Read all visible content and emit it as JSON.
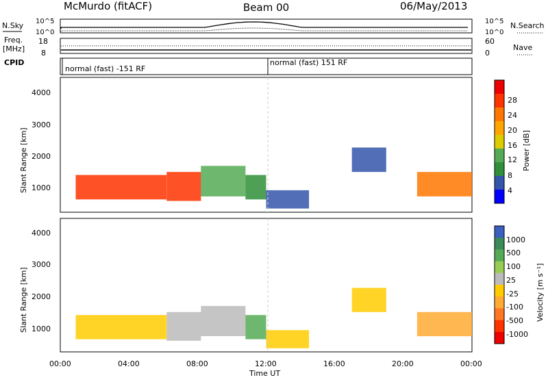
{
  "header": {
    "station": "McMurdo (fitACF)",
    "beam": "Beam 00",
    "date": "06/May/2013"
  },
  "noise_panel": {
    "left_label": "N.Sky",
    "right_label": "N.Search",
    "left_ticks": [
      "10^5",
      "10^0"
    ],
    "right_ticks": [
      "10^5",
      "10^0"
    ]
  },
  "freq_panel": {
    "left_label_1": "Freq.",
    "left_label_2": "[MHz]",
    "right_label": "Nave",
    "left_ticks": [
      "18",
      "8"
    ],
    "right_ticks": [
      "60",
      "0"
    ]
  },
  "cpid_panel": {
    "label": "CPID",
    "mode_1": "normal (fast) -151 RF",
    "mode_2": "normal (fast) 151 RF"
  },
  "power_panel": {
    "ylabel": "Slant Range [km]",
    "yticks": [
      "4000",
      "3000",
      "2000",
      "1000"
    ],
    "colorbar_label": "Power [dB]",
    "colorbar_ticks": [
      "28",
      "24",
      "20",
      "16",
      "12",
      "8",
      "4"
    ]
  },
  "velocity_panel": {
    "ylabel": "Slant Range [km]",
    "yticks": [
      "4000",
      "3000",
      "2000",
      "1000"
    ],
    "colorbar_label": "Velocity [m s⁻¹]",
    "colorbar_ticks": [
      "1000",
      "500",
      "100",
      "25",
      "-25",
      "-100",
      "-500",
      "-1000"
    ]
  },
  "xaxis": {
    "label": "Time UT",
    "ticks": [
      "00:00",
      "04:00",
      "08:00",
      "12:00",
      "16:00",
      "20:00",
      "00:00"
    ]
  },
  "colors": {
    "power": [
      "#0000ff",
      "#3355aa",
      "#2f8f3a",
      "#55aa55",
      "#ddcc00",
      "#ffa500",
      "#ff7700",
      "#ff3300",
      "#ee0000"
    ],
    "velocity": [
      "#3b5fbf",
      "#3a8a5a",
      "#55aa55",
      "#99cc55",
      "#bbbbbb",
      "#ffcc00",
      "#ffaa33",
      "#ff7722",
      "#ff3300",
      "#ee0000"
    ]
  },
  "chart_data": [
    {
      "type": "heatmap",
      "title": "Power [dB]",
      "xlabel": "Time UT",
      "ylabel": "Slant Range [km]",
      "xlim": [
        0,
        24
      ],
      "ylim": [
        180,
        4600
      ],
      "colorbar_range": [
        0,
        32
      ],
      "regions": [
        {
          "t": [
            0.9,
            6.2
          ],
          "r": [
            600,
            1400
          ],
          "value": 28
        },
        {
          "t": [
            6.2,
            8.2
          ],
          "r": [
            550,
            1500
          ],
          "value": 27
        },
        {
          "t": [
            8.2,
            10.8
          ],
          "r": [
            700,
            1700
          ],
          "value": 12
        },
        {
          "t": [
            10.8,
            12.0
          ],
          "r": [
            600,
            1400
          ],
          "value": 8
        },
        {
          "t": [
            12.0,
            14.5
          ],
          "r": [
            300,
            900
          ],
          "value": 6
        },
        {
          "t": [
            17.0,
            19.0
          ],
          "r": [
            1500,
            2300
          ],
          "value": 6
        },
        {
          "t": [
            20.8,
            24.0
          ],
          "r": [
            700,
            1500
          ],
          "value": 24
        }
      ]
    },
    {
      "type": "heatmap",
      "title": "Velocity [m s⁻¹]",
      "xlabel": "Time UT",
      "ylabel": "Slant Range [km]",
      "xlim": [
        0,
        24
      ],
      "ylim": [
        180,
        4600
      ],
      "colorbar_range": [
        -1000,
        1000
      ],
      "regions": [
        {
          "t": [
            0.9,
            6.2
          ],
          "r": [
            600,
            1400
          ],
          "value": -150
        },
        {
          "t": [
            6.2,
            8.2
          ],
          "r": [
            550,
            1500
          ],
          "value": 100
        },
        {
          "t": [
            8.2,
            10.8
          ],
          "r": [
            700,
            1700
          ],
          "value": 200
        },
        {
          "t": [
            10.8,
            12.0
          ],
          "r": [
            600,
            1400
          ],
          "value": 500
        },
        {
          "t": [
            12.0,
            14.5
          ],
          "r": [
            300,
            900
          ],
          "value": -100
        },
        {
          "t": [
            17.0,
            19.0
          ],
          "r": [
            1500,
            2300
          ],
          "value": -150
        },
        {
          "t": [
            20.8,
            24.0
          ],
          "r": [
            700,
            1500
          ],
          "value": -300
        }
      ]
    }
  ]
}
